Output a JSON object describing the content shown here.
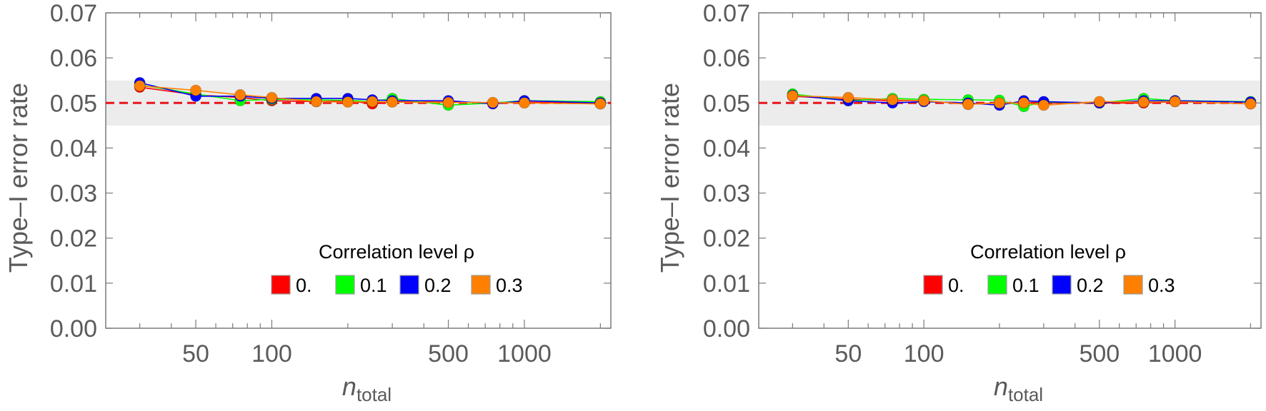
{
  "colors": {
    "rho_0": "#ff0000",
    "rho_0.1": "#00ff00",
    "rho_0.2": "#0000ff",
    "rho_0.3": "#ff8000",
    "band": "#ececec",
    "reference_line": "#e8141b",
    "axis": "#7a7a7a"
  },
  "chart_data": [
    {
      "type": "line",
      "ylabel": "Type–I error rate",
      "xlabel": {
        "main": "n",
        "sub": "total"
      },
      "x_scale": "log",
      "xlim": [
        22,
        2200
      ],
      "ylim": [
        0,
        0.07
      ],
      "x_ticks": [
        {
          "value": 50,
          "label": "50"
        },
        {
          "value": 100,
          "label": "100"
        },
        {
          "value": 500,
          "label": "500"
        },
        {
          "value": 1000,
          "label": "1000"
        }
      ],
      "y_ticks": [
        {
          "value": 0.0,
          "label": "0.00"
        },
        {
          "value": 0.01,
          "label": "0.01"
        },
        {
          "value": 0.02,
          "label": "0.02"
        },
        {
          "value": 0.03,
          "label": "0.03"
        },
        {
          "value": 0.04,
          "label": "0.04"
        },
        {
          "value": 0.05,
          "label": "0.05"
        },
        {
          "value": 0.06,
          "label": "0.06"
        },
        {
          "value": 0.07,
          "label": "0.07"
        }
      ],
      "band": [
        0.045,
        0.055
      ],
      "reference_y": 0.05,
      "legend_title": "Correlation level ρ",
      "legend_position": "bottom-right",
      "x": [
        30,
        50,
        75,
        100,
        150,
        200,
        250,
        300,
        500,
        750,
        1000,
        2000
      ],
      "series": [
        {
          "name": "0.",
          "color_key": "rho_0",
          "values": [
            0.0535,
            0.0518,
            0.0512,
            0.0505,
            0.0503,
            0.0505,
            0.0498,
            0.0503,
            0.0502,
            0.05,
            0.0502,
            0.0498
          ]
        },
        {
          "name": "0.1",
          "color_key": "rho_0.1",
          "values": [
            0.054,
            0.052,
            0.0505,
            0.0508,
            0.0507,
            0.0506,
            0.0503,
            0.051,
            0.0495,
            0.05,
            0.0505,
            0.0503
          ]
        },
        {
          "name": "0.2",
          "color_key": "rho_0.2",
          "values": [
            0.0545,
            0.0515,
            0.0515,
            0.051,
            0.051,
            0.051,
            0.0507,
            0.0505,
            0.0505,
            0.0498,
            0.0505,
            0.05
          ]
        },
        {
          "name": "0.3",
          "color_key": "rho_0.3",
          "values": [
            0.0538,
            0.0528,
            0.0518,
            0.0512,
            0.0503,
            0.0502,
            0.0503,
            0.0502,
            0.0501,
            0.0501,
            0.05,
            0.0498
          ]
        }
      ]
    },
    {
      "type": "line",
      "ylabel": "Type–I error rate",
      "xlabel": {
        "main": "n",
        "sub": "total"
      },
      "x_scale": "log",
      "xlim": [
        22,
        2200
      ],
      "ylim": [
        0,
        0.07
      ],
      "x_ticks": [
        {
          "value": 50,
          "label": "50"
        },
        {
          "value": 100,
          "label": "100"
        },
        {
          "value": 500,
          "label": "500"
        },
        {
          "value": 1000,
          "label": "1000"
        }
      ],
      "y_ticks": [
        {
          "value": 0.0,
          "label": "0.00"
        },
        {
          "value": 0.01,
          "label": "0.01"
        },
        {
          "value": 0.02,
          "label": "0.02"
        },
        {
          "value": 0.03,
          "label": "0.03"
        },
        {
          "value": 0.04,
          "label": "0.04"
        },
        {
          "value": 0.05,
          "label": "0.05"
        },
        {
          "value": 0.06,
          "label": "0.06"
        },
        {
          "value": 0.07,
          "label": "0.07"
        }
      ],
      "band": [
        0.045,
        0.055
      ],
      "reference_y": 0.05,
      "legend_title": "Correlation level ρ",
      "legend_position": "bottom-right",
      "x": [
        30,
        50,
        75,
        100,
        150,
        200,
        250,
        300,
        500,
        750,
        1000,
        2000
      ],
      "series": [
        {
          "name": "0.",
          "color_key": "rho_0",
          "values": [
            0.0515,
            0.0508,
            0.0505,
            0.0505,
            0.0497,
            0.05,
            0.05,
            0.05,
            0.05,
            0.05,
            0.0503,
            0.0498
          ]
        },
        {
          "name": "0.1",
          "color_key": "rho_0.1",
          "values": [
            0.052,
            0.0505,
            0.051,
            0.0508,
            0.0507,
            0.0506,
            0.0492,
            0.0502,
            0.05,
            0.051,
            0.0505,
            0.0503
          ]
        },
        {
          "name": "0.2",
          "color_key": "rho_0.2",
          "values": [
            0.0517,
            0.0505,
            0.05,
            0.0503,
            0.05,
            0.0495,
            0.0505,
            0.0503,
            0.05,
            0.0505,
            0.0505,
            0.0502
          ]
        },
        {
          "name": "0.3",
          "color_key": "rho_0.3",
          "values": [
            0.0516,
            0.0512,
            0.0507,
            0.0505,
            0.0497,
            0.05,
            0.05,
            0.0495,
            0.0503,
            0.0502,
            0.0503,
            0.0498
          ]
        }
      ]
    }
  ]
}
